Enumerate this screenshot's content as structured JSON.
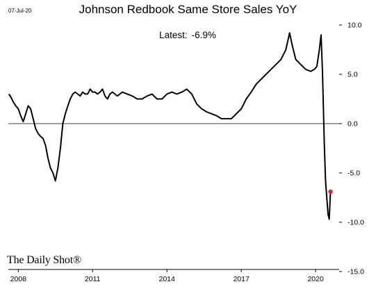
{
  "header": {
    "date_stamp": "07-Jul-20",
    "title": "Johnson Redbook Same Store Sales YoY",
    "latest_label": "Latest:",
    "latest_value": "-6.9%"
  },
  "brand": "The Daily Shot®",
  "colors": {
    "line": "#000000",
    "marker": "#e8262a",
    "zero_line": "#000000"
  },
  "chart_data": {
    "type": "line",
    "title": "Johnson Redbook Same Store Sales YoY",
    "xlabel": "",
    "ylabel": "",
    "x_ticks": [
      "2008",
      "2011",
      "2014",
      "2017",
      "2020"
    ],
    "y_ticks": [
      "10.0",
      "5.0",
      "0.0",
      "-5.0",
      "-10.0",
      "-15.0"
    ],
    "y_tick_values": [
      10,
      5,
      0,
      -5,
      -10,
      -15
    ],
    "xlim": [
      2007.6,
      2020.95
    ],
    "ylim": [
      -15,
      10
    ],
    "grid": false,
    "zero_line": true,
    "y_axis_position": "right",
    "series": [
      {
        "name": "",
        "x": [
          2007.62,
          2007.7,
          2007.8,
          2007.9,
          2008.0,
          2008.1,
          2008.2,
          2008.3,
          2008.4,
          2008.5,
          2008.6,
          2008.7,
          2008.8,
          2008.9,
          2009.0,
          2009.1,
          2009.2,
          2009.3,
          2009.4,
          2009.5,
          2009.6,
          2009.7,
          2009.8,
          2009.9,
          2010.0,
          2010.1,
          2010.2,
          2010.3,
          2010.4,
          2010.5,
          2010.6,
          2010.7,
          2010.8,
          2010.9,
          2011.0,
          2011.1,
          2011.2,
          2011.3,
          2011.4,
          2011.5,
          2011.6,
          2011.7,
          2011.8,
          2011.9,
          2012.0,
          2012.2,
          2012.4,
          2012.6,
          2012.8,
          2013.0,
          2013.2,
          2013.4,
          2013.6,
          2013.8,
          2014.0,
          2014.2,
          2014.4,
          2014.6,
          2014.8,
          2015.0,
          2015.2,
          2015.4,
          2015.6,
          2015.8,
          2016.0,
          2016.2,
          2016.4,
          2016.6,
          2016.8,
          2017.0,
          2017.2,
          2017.4,
          2017.6,
          2017.8,
          2018.0,
          2018.2,
          2018.4,
          2018.6,
          2018.8,
          2018.95,
          2019.05,
          2019.2,
          2019.4,
          2019.6,
          2019.8,
          2019.95,
          2020.05,
          2020.15,
          2020.22,
          2020.28,
          2020.35,
          2020.4,
          2020.45,
          2020.5,
          2020.55,
          2020.6
        ],
        "y": [
          3.0,
          2.7,
          2.2,
          1.8,
          1.5,
          0.8,
          0.2,
          1.0,
          1.8,
          1.5,
          0.5,
          -0.5,
          -1.0,
          -1.3,
          -1.5,
          -2.2,
          -3.5,
          -4.5,
          -5.0,
          -5.8,
          -4.5,
          -2.5,
          0.0,
          1.0,
          1.8,
          2.5,
          3.0,
          3.2,
          3.0,
          2.8,
          3.2,
          3.0,
          3.0,
          3.5,
          3.2,
          3.2,
          3.0,
          3.2,
          3.5,
          2.8,
          2.5,
          3.0,
          3.2,
          3.0,
          2.8,
          3.2,
          3.0,
          2.8,
          2.5,
          2.5,
          2.8,
          3.0,
          2.5,
          2.5,
          3.0,
          3.2,
          3.0,
          3.2,
          3.5,
          3.0,
          2.0,
          1.5,
          1.2,
          1.0,
          0.8,
          0.5,
          0.5,
          0.5,
          1.0,
          1.5,
          2.5,
          3.2,
          4.0,
          4.5,
          5.0,
          5.5,
          6.0,
          6.5,
          7.5,
          9.2,
          8.0,
          6.5,
          6.0,
          5.5,
          5.3,
          5.5,
          5.8,
          7.5,
          9.0,
          5.0,
          -2.0,
          -5.8,
          -7.5,
          -9.2,
          -9.7,
          -6.9
        ]
      }
    ],
    "latest_point": {
      "x": 2020.6,
      "y": -6.9
    }
  }
}
